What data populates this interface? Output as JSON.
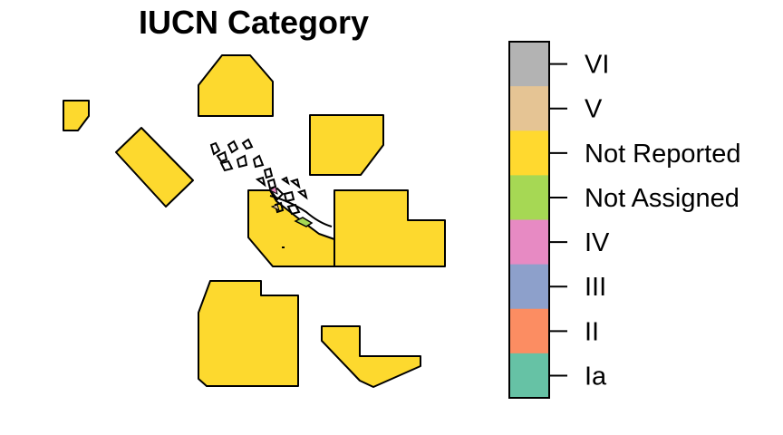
{
  "map": {
    "title": "IUCN Category",
    "colors": {
      "Not Reported": "#FDD92E"
    }
  },
  "legend": {
    "entries": [
      {
        "label": "VI",
        "color": "#B3B3B3"
      },
      {
        "label": "V",
        "color": "#E5C494"
      },
      {
        "label": "Not Reported",
        "color": "#FFD92F"
      },
      {
        "label": "Not Assigned",
        "color": "#A6D854"
      },
      {
        "label": "IV",
        "color": "#E78AC3"
      },
      {
        "label": "III",
        "color": "#8DA0CB"
      },
      {
        "label": "II",
        "color": "#FC8D62"
      },
      {
        "label": "Ia",
        "color": "#66C2A5"
      }
    ]
  }
}
